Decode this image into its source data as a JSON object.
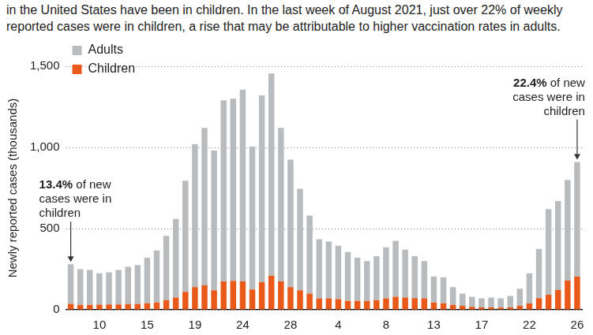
{
  "chart_data": {
    "type": "bar",
    "subtitle": "in the United States have been in children. In the last week of August 2021, just over 22% of weekly reported cases were in children, a rise that may be attributable to higher vaccination rates in adults.",
    "y_label": "Newly reported cases (thousands)",
    "categories": [
      null,
      null,
      null,
      "10",
      null,
      null,
      null,
      null,
      "15",
      null,
      null,
      null,
      null,
      "19",
      null,
      null,
      null,
      null,
      "24",
      null,
      null,
      null,
      null,
      "28",
      null,
      null,
      null,
      null,
      "4",
      null,
      null,
      null,
      null,
      "8",
      null,
      null,
      null,
      null,
      "13",
      null,
      null,
      null,
      null,
      "17",
      null,
      null,
      null,
      null,
      "22",
      null,
      null,
      null,
      null,
      "26"
    ],
    "series": [
      {
        "name": "Adults",
        "color": "#b9bcbf",
        "values": [
          243,
          220,
          215,
          193,
          197,
          212,
          230,
          240,
          280,
          320,
          395,
          485,
          685,
          880,
          970,
          860,
          1115,
          1122,
          1180,
          880,
          1150,
          1245,
          945,
          785,
          625,
          480,
          365,
          350,
          330,
          300,
          265,
          245,
          270,
          315,
          345,
          295,
          258,
          230,
          160,
          160,
          110,
          76,
          62,
          55,
          60,
          57,
          70,
          106,
          186,
          303,
          526,
          549,
          620,
          706
        ]
      },
      {
        "name": "Children",
        "color": "#e8591a",
        "values": [
          37,
          30,
          30,
          32,
          33,
          33,
          35,
          35,
          40,
          45,
          60,
          75,
          110,
          140,
          150,
          120,
          175,
          178,
          175,
          125,
          170,
          210,
          175,
          140,
          120,
          100,
          70,
          70,
          65,
          55,
          55,
          55,
          60,
          70,
          80,
          75,
          72,
          70,
          45,
          40,
          30,
          24,
          18,
          15,
          15,
          13,
          15,
          24,
          39,
          72,
          94,
          121,
          180,
          204
        ]
      }
    ],
    "stacked": true,
    "ylim": [
      0,
      1500
    ],
    "yticks": [
      0,
      500,
      {
        "value": 1000,
        "label": "1,000"
      },
      {
        "value": 1500,
        "label": "1,500"
      }
    ],
    "grid": true,
    "legend": "upper left",
    "annotations": [
      {
        "text": "13.4% of new cases were in children"
      },
      {
        "text": "22.4% of new cases were in children"
      }
    ]
  }
}
